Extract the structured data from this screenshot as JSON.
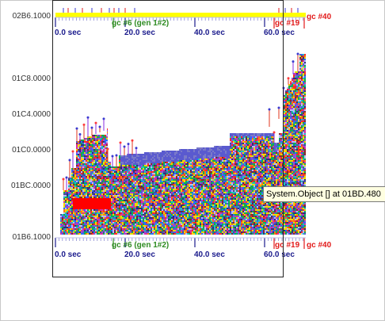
{
  "colors": {
    "band_palette": [
      "#ff2a2a",
      "#2a6bff",
      "#17a84a",
      "#ffd000",
      "#9a4bd6",
      "#ff7a12",
      "#1fc0c0",
      "#d62fa6",
      "#5a5acf",
      "#4a4a9a",
      "#2f2f7a",
      "#b8b8ff",
      "#00b060",
      "#e2e200",
      "#8b2b2b"
    ],
    "top_bar": "#ffff00",
    "axis_label": "#1a1a8c",
    "gc_green": "#2e8b22",
    "gc_red": "#e21b1b",
    "tooltip_bg": "#ffffe1"
  },
  "address_axis": {
    "labels": [
      "02B6.1000",
      "01C8.0000",
      "01C4.0000",
      "01C0.0000",
      "01BC.0000",
      "01B6.1000"
    ]
  },
  "time_axis_top": {
    "labels": [
      "0.0 sec",
      "20.0 sec",
      "40.0 sec",
      "60.0 sec"
    ]
  },
  "time_axis_bottom": {
    "labels": [
      "0.0 sec",
      "20.0 sec",
      "40.0 sec",
      "60.0 sec"
    ]
  },
  "gc_markers_top": {
    "gen1": "gc #6 (gen 1#2)",
    "mid": "gc #19",
    "end": "gc #40"
  },
  "gc_markers_bottom": {
    "gen1": "gc #6 (gen 1#2)",
    "mid": "gc #19",
    "end": "gc #40"
  },
  "tooltip": {
    "text": "System.Object [] at 01BD.480"
  }
}
